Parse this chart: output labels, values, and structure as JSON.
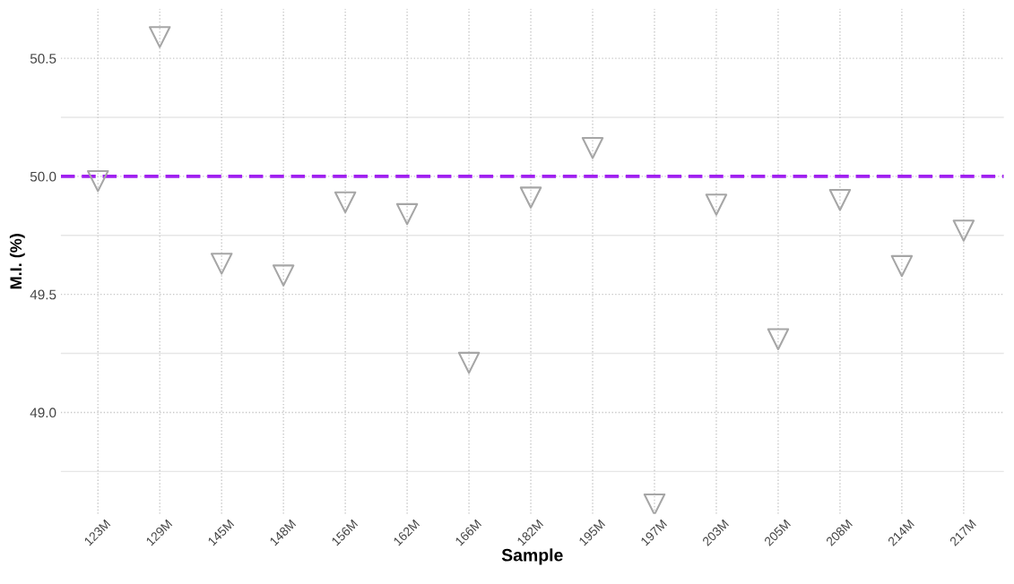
{
  "chart_data": {
    "type": "scatter",
    "xlabel": "Sample",
    "ylabel": "M.I. (%)",
    "categories": [
      "123M",
      "129M",
      "145M",
      "148M",
      "156M",
      "162M",
      "166M",
      "182M",
      "195M",
      "197M",
      "203M",
      "205M",
      "208M",
      "214M",
      "217M"
    ],
    "series": [
      {
        "color": "#a6a6a6",
        "values": [
          49.98,
          50.59,
          49.63,
          49.58,
          49.89,
          49.84,
          49.21,
          49.91,
          50.12,
          48.61,
          49.88,
          49.31,
          49.9,
          49.62,
          49.77
        ]
      }
    ],
    "marker": "triangle",
    "ylim": [
      48.57,
      50.71
    ],
    "yticks": [
      {
        "value": 48.75,
        "label": null
      },
      {
        "value": 49.0,
        "label": "49.0"
      },
      {
        "value": 49.25,
        "label": null
      },
      {
        "value": 49.5,
        "label": "49.5"
      },
      {
        "value": 49.75,
        "label": null
      },
      {
        "value": 50.0,
        "label": "50.0"
      },
      {
        "value": 50.25,
        "label": null
      },
      {
        "value": 50.5,
        "label": "50.5"
      }
    ],
    "grid": true,
    "ref_lines": [
      {
        "axis": "y",
        "value": 50.0,
        "color": "#a020f0",
        "line_style": "dashed"
      }
    ]
  }
}
